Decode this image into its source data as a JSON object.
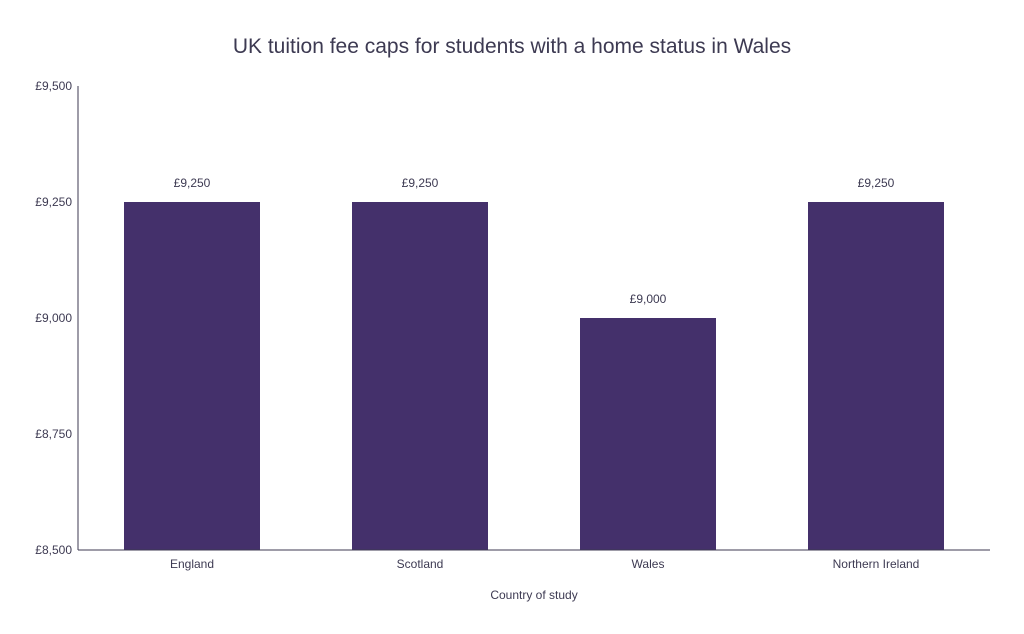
{
  "chart_data": {
    "type": "bar",
    "title": "UK tuition fee caps for students with a home status in Wales",
    "xlabel": "Country of study",
    "ylabel": "",
    "categories": [
      "England",
      "Scotland",
      "Wales",
      "Northern Ireland"
    ],
    "values": [
      9250,
      9250,
      9000,
      9250
    ],
    "value_labels": [
      "£9,250",
      "£9,250",
      "£9,000",
      "£9,250"
    ],
    "ylim": [
      8500,
      9500
    ],
    "yticks": [
      8500,
      8750,
      9000,
      9250,
      9500
    ],
    "ytick_labels": [
      "£8,500",
      "£8,750",
      "£9,000",
      "£9,250",
      "£9,500"
    ],
    "grid": false,
    "legend": "none",
    "bar_color": "#44306b",
    "text_color": "#3d3a52"
  }
}
